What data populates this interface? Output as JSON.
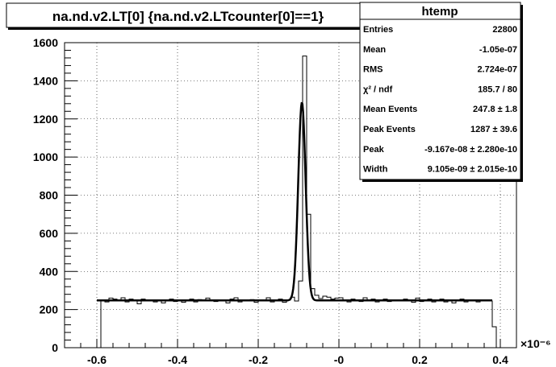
{
  "title": "na.nd.v2.LT[0] {na.nd.v2.LTcounter[0]==1}",
  "stats": {
    "title": "htemp",
    "rows": [
      {
        "key": "Entries",
        "value": "22800"
      },
      {
        "key": "Mean",
        "value": "-1.05e-07"
      },
      {
        "key": "RMS",
        "value": "2.724e-07"
      },
      {
        "key": "χ² / ndf",
        "value": "185.7 / 80"
      },
      {
        "key": "Mean Events",
        "value": "247.8 ± 1.8"
      },
      {
        "key": "Peak Events",
        "value": "1287 ± 39.6"
      },
      {
        "key": "Peak",
        "value": "-9.167e-08 ± 2.280e-10"
      },
      {
        "key": "Width",
        "value": "9.105e-09 ± 2.015e-10"
      }
    ]
  },
  "chart_data": {
    "type": "histogram",
    "title": "na.nd.v2.LT[0] {na.nd.v2.LTcounter[0]==1}",
    "xlim": [
      -0.68,
      0.44
    ],
    "ylim": [
      0,
      1600
    ],
    "x_multiplier": "×10⁻⁶",
    "x_ticks": [
      -0.6,
      -0.4,
      -0.2,
      0,
      0.2,
      0.4
    ],
    "x_tick_labels": [
      "-0.6",
      "-0.4",
      "-0.2",
      "-0",
      "0.2",
      "0.4"
    ],
    "y_ticks": [
      0,
      200,
      400,
      600,
      800,
      1000,
      1200,
      1400,
      1600
    ],
    "y_tick_labels": [
      "0",
      "200",
      "400",
      "600",
      "800",
      "1000",
      "1200",
      "1400",
      "1600"
    ],
    "grid": true,
    "histogram": {
      "bin_start": -0.6,
      "bin_width": 0.01,
      "counts": [
        0,
        250,
        240,
        260,
        255,
        245,
        262,
        240,
        255,
        248,
        230,
        255,
        250,
        245,
        240,
        250,
        235,
        248,
        255,
        242,
        250,
        238,
        245,
        255,
        240,
        252,
        245,
        260,
        248,
        242,
        250,
        246,
        235,
        255,
        262,
        240,
        250,
        245,
        252,
        238,
        245,
        250,
        262,
        240,
        248,
        255,
        238,
        250,
        265,
        245,
        350,
        1530,
        700,
        310,
        275,
        258,
        270,
        265,
        255,
        260,
        262,
        250,
        240,
        255,
        250,
        242,
        262,
        245,
        255,
        240,
        250,
        255,
        242,
        250,
        248,
        245,
        255,
        250,
        238,
        260,
        242,
        250,
        255,
        240,
        245,
        255,
        240,
        250,
        235,
        245,
        255,
        240,
        250,
        245,
        240,
        248,
        250,
        245,
        110
      ],
      "line_color": "#000000"
    },
    "fit": {
      "type": "gaussian_plus_constant",
      "constant": 247.8,
      "amplitude": 1040,
      "peak": -0.09167,
      "width": 0.009105,
      "x_range": [
        -0.6,
        0.38
      ],
      "line_color": "#000000"
    }
  }
}
